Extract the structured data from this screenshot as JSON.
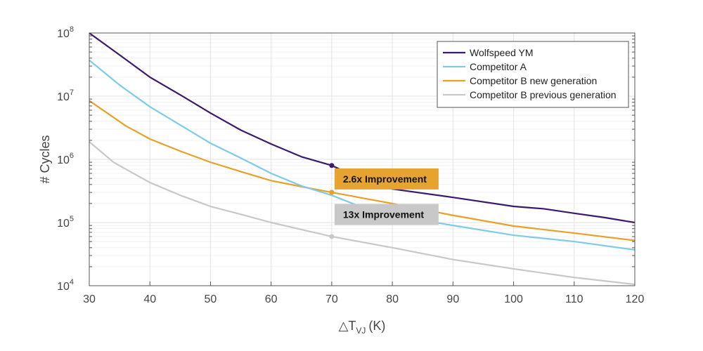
{
  "chart_data": {
    "type": "line",
    "xlabel": "△T",
    "xlabel_sub": "VJ",
    "xlabel_unit": "(K)",
    "ylabel": "# Cycles",
    "xlim": [
      30,
      120
    ],
    "ylim": [
      10000,
      100000000
    ],
    "yscale": "log",
    "grid": true,
    "legend_position": "top-right",
    "x_ticks": [
      "30",
      "40",
      "50",
      "60",
      "70",
      "80",
      "90",
      "100",
      "110",
      "120"
    ],
    "y_ticks": [
      {
        "base": "10",
        "exp": "4"
      },
      {
        "base": "10",
        "exp": "5"
      },
      {
        "base": "10",
        "exp": "6"
      },
      {
        "base": "10",
        "exp": "7"
      },
      {
        "base": "10",
        "exp": "8"
      }
    ],
    "series": [
      {
        "name": "Wolfspeed YM",
        "color": "#3b1a6e",
        "x": [
          30,
          35,
          40,
          45,
          50,
          55,
          60,
          65,
          70,
          75,
          80,
          90,
          100,
          105,
          110,
          115,
          120
        ],
        "y": [
          105000000,
          45000000,
          20000000,
          10500000,
          5400000,
          2900000,
          1750000,
          1100000,
          800000,
          480000,
          340000,
          250000,
          180000,
          165000,
          140000,
          120000,
          100000
        ]
      },
      {
        "name": "Competitor A",
        "color": "#7ecbe6",
        "x": [
          30,
          35,
          40,
          45,
          50,
          55,
          60,
          65,
          70,
          75,
          80,
          90,
          100,
          110,
          120
        ],
        "y": [
          37000000,
          15000000,
          6800000,
          3500000,
          1800000,
          1050000,
          600000,
          380000,
          270000,
          175000,
          130000,
          90000,
          63000,
          50000,
          37000
        ]
      },
      {
        "name": "Competitor B new generation",
        "color": "#e6a128",
        "x": [
          30,
          36,
          40,
          45,
          50,
          55,
          60,
          65,
          70,
          80,
          90,
          100,
          110,
          120
        ],
        "y": [
          8500000,
          3400000,
          2100000,
          1350000,
          900000,
          640000,
          460000,
          370000,
          300000,
          200000,
          130000,
          88000,
          68000,
          52000
        ]
      },
      {
        "name": "Competitor B previous generation",
        "color": "#c8c8c8",
        "x": [
          30,
          34,
          37,
          40,
          45,
          50,
          55,
          60,
          70,
          80,
          90,
          100,
          110,
          120
        ],
        "y": [
          1900000,
          900000,
          620000,
          430000,
          270000,
          180000,
          135000,
          100000,
          60000,
          40000,
          26000,
          18500,
          13500,
          10500
        ]
      }
    ],
    "annotations": [
      {
        "text": "2.6x Improvement",
        "x": 70,
        "color": "#e6a32f",
        "from_series": 0,
        "to_series": 2
      },
      {
        "text": "13x Improvement",
        "x": 70,
        "color": "#c8c8c8",
        "from_series": 2,
        "to_series": 3
      }
    ]
  }
}
